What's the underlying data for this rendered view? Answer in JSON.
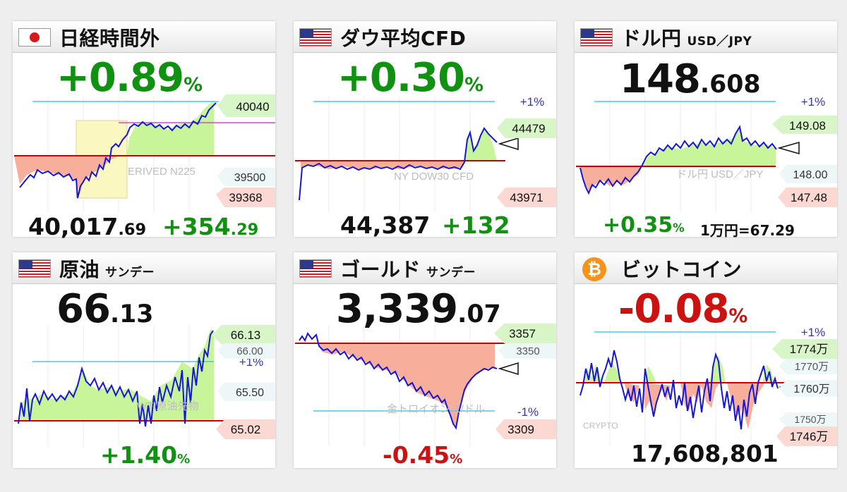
{
  "colors": {
    "up": "#119111",
    "down": "#cc1111",
    "line": "#1616d6",
    "gain_fill": "#c8f59a",
    "loss_fill": "#f7ae9b",
    "base": "#cc0000",
    "band": "#44c8f0",
    "magenta": "#e040e0"
  },
  "cards": [
    {
      "id": "nikkei",
      "title": "日経時間外",
      "flag": "japan-flag-icon",
      "main_int": "+0.89",
      "main_pct": "%",
      "watermark": "ERIVED N225",
      "price_labels": [
        "40040",
        "39500",
        "39368"
      ],
      "bottom_value_int": "40,017",
      "bottom_value_dec": ".69",
      "bottom_change_int": "+354",
      "bottom_change_dec": ".29"
    },
    {
      "id": "dow",
      "title": "ダウ平均CFD",
      "flag": "us-flag-icon",
      "main_int": "+0.30",
      "main_pct": "%",
      "band_label": "+1%",
      "watermark": "NY DOW30 CFD",
      "price_labels": [
        "44479",
        "43971"
      ],
      "bottom_value": "44,387",
      "bottom_change": "+132"
    },
    {
      "id": "usdjpy",
      "title": "ドル円",
      "title_sub": "USD／JPY",
      "flag": "us-flag-icon",
      "main_int": "148",
      "main_dec": ".608",
      "band_label": "+1%",
      "watermark": "ドル円 USD／JPY",
      "price_labels": [
        "149.08",
        "148.00",
        "147.48"
      ],
      "bottom_change_int": "+0.35",
      "bottom_change_pct": "%",
      "bottom_note": "1万円=67.29"
    },
    {
      "id": "crude",
      "title": "原油",
      "title_sub": "サンデー",
      "flag": "us-flag-icon",
      "main_int": "66",
      "main_dec": ".13",
      "band_label": "+1%",
      "watermark": "WTI原油先物",
      "price_labels": [
        "66.13",
        "66.00",
        "65.50",
        "65.02"
      ],
      "bottom_change_int": "+1.40",
      "bottom_change_pct": "%"
    },
    {
      "id": "gold",
      "title": "ゴールド",
      "title_sub": "サンデー",
      "flag": "us-flag-icon",
      "main_int": "3,339",
      "main_dec": ".07",
      "band_label": "-1%",
      "watermark": "金トロイオンス/ドル",
      "price_labels": [
        "3357",
        "3350",
        "3309"
      ],
      "bottom_change_int": "-0.45",
      "bottom_change_pct": "%"
    },
    {
      "id": "bitcoin",
      "title": "ビットコイン",
      "flag": "bitcoin-icon",
      "main_int": "-0.08",
      "main_pct": "%",
      "band_label": "+1%",
      "watermark": "CRYPTO",
      "price_labels": [
        "1774万",
        "1770万",
        "1760万",
        "1750万",
        "1746万"
      ],
      "bottom_value": "17,608,801"
    }
  ]
}
